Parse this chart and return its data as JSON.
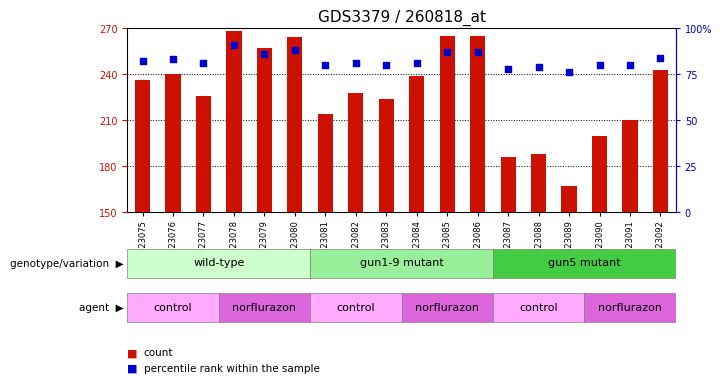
{
  "title": "GDS3379 / 260818_at",
  "samples": [
    "GSM323075",
    "GSM323076",
    "GSM323077",
    "GSM323078",
    "GSM323079",
    "GSM323080",
    "GSM323081",
    "GSM323082",
    "GSM323083",
    "GSM323084",
    "GSM323085",
    "GSM323086",
    "GSM323087",
    "GSM323088",
    "GSM323089",
    "GSM323090",
    "GSM323091",
    "GSM323092"
  ],
  "counts": [
    236,
    240,
    226,
    268,
    257,
    264,
    214,
    228,
    224,
    239,
    265,
    265,
    186,
    188,
    167,
    200,
    210,
    243
  ],
  "percentile_ranks": [
    82,
    83,
    81,
    91,
    86,
    88,
    80,
    81,
    80,
    81,
    87,
    87,
    78,
    79,
    76,
    80,
    80,
    84
  ],
  "ymin": 150,
  "ymax": 270,
  "yticks": [
    150,
    180,
    210,
    240,
    270
  ],
  "right_yticks": [
    0,
    25,
    50,
    75,
    100
  ],
  "bar_color": "#CC1100",
  "dot_color": "#0000CC",
  "genotype_groups": [
    {
      "label": "wild-type",
      "start": 0,
      "end": 5,
      "color": "#CCFFCC"
    },
    {
      "label": "gun1-9 mutant",
      "start": 6,
      "end": 11,
      "color": "#99EE99"
    },
    {
      "label": "gun5 mutant",
      "start": 12,
      "end": 17,
      "color": "#44CC44"
    }
  ],
  "agent_groups": [
    {
      "label": "control",
      "start": 0,
      "end": 2,
      "color": "#FFAAFF"
    },
    {
      "label": "norflurazon",
      "start": 3,
      "end": 5,
      "color": "#DD66DD"
    },
    {
      "label": "control",
      "start": 6,
      "end": 8,
      "color": "#FFAAFF"
    },
    {
      "label": "norflurazon",
      "start": 9,
      "end": 11,
      "color": "#DD66DD"
    },
    {
      "label": "control",
      "start": 12,
      "end": 14,
      "color": "#FFAAFF"
    },
    {
      "label": "norflurazon",
      "start": 15,
      "end": 17,
      "color": "#DD66DD"
    }
  ],
  "legend_count_color": "#CC1100",
  "legend_dot_color": "#0000CC",
  "title_fontsize": 11,
  "tick_fontsize": 7,
  "label_fontsize": 8,
  "bar_width": 0.5
}
